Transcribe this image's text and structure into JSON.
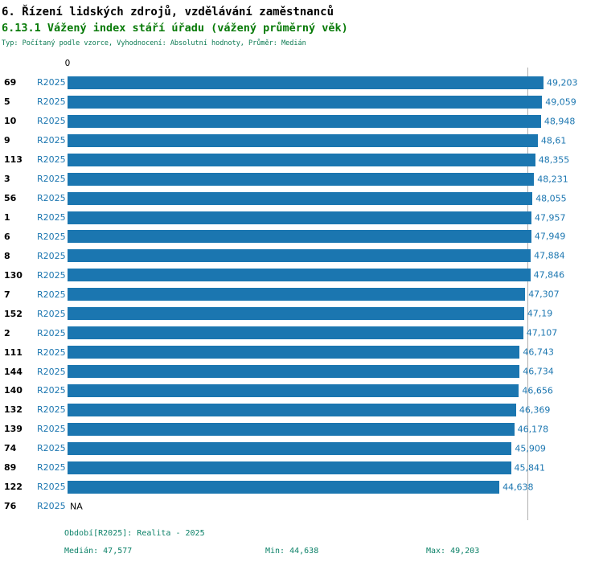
{
  "header": {
    "title1": "6. Řízení lidských zdrojů, vzdělávání zaměstnanců",
    "title2": "6.13.1 Vážený index stáří úřadu (vážený průměrný věk)",
    "meta": "Typ: Počítaný podle vzorce, Vyhodnocení: Absolutní hodnoty, Průměr: Medián"
  },
  "colors": {
    "bar": "#1b76b0",
    "title-green": "#077a07",
    "meta-green": "#0b7a52",
    "footer-teal": "#0c8168",
    "median-line": "#b0b0b0"
  },
  "chart_data": {
    "type": "bar",
    "orientation": "horizontal",
    "title": "6.13.1 Vážený index stáří úřadu (vážený průměrný věk)",
    "period_label": "R2025",
    "axis": {
      "zero_label": "0",
      "max": 49.203
    },
    "median": 47.577,
    "grid": false,
    "categories": [
      "69",
      "5",
      "10",
      "9",
      "113",
      "3",
      "56",
      "1",
      "6",
      "8",
      "130",
      "7",
      "152",
      "2",
      "111",
      "144",
      "140",
      "132",
      "139",
      "74",
      "89",
      "122",
      "76"
    ],
    "values": [
      49.203,
      49.059,
      48.948,
      48.61,
      48.355,
      48.231,
      48.055,
      47.957,
      47.949,
      47.884,
      47.846,
      47.307,
      47.19,
      47.107,
      46.743,
      46.734,
      46.656,
      46.369,
      46.178,
      45.909,
      45.841,
      44.638,
      null
    ],
    "value_labels": [
      "49,203",
      "49,059",
      "48,948",
      "48,61",
      "48,355",
      "48,231",
      "48,055",
      "47,957",
      "47,949",
      "47,884",
      "47,846",
      "47,307",
      "47,19",
      "47,107",
      "46,743",
      "46,734",
      "46,656",
      "46,369",
      "46,178",
      "45,909",
      "45,841",
      "44,638",
      "NA"
    ]
  },
  "footer": {
    "period_line": "Období[R2025]: Realita - 2025",
    "median": "Medián: 47,577",
    "min": "Min: 44,638",
    "max": "Max: 49,203"
  }
}
